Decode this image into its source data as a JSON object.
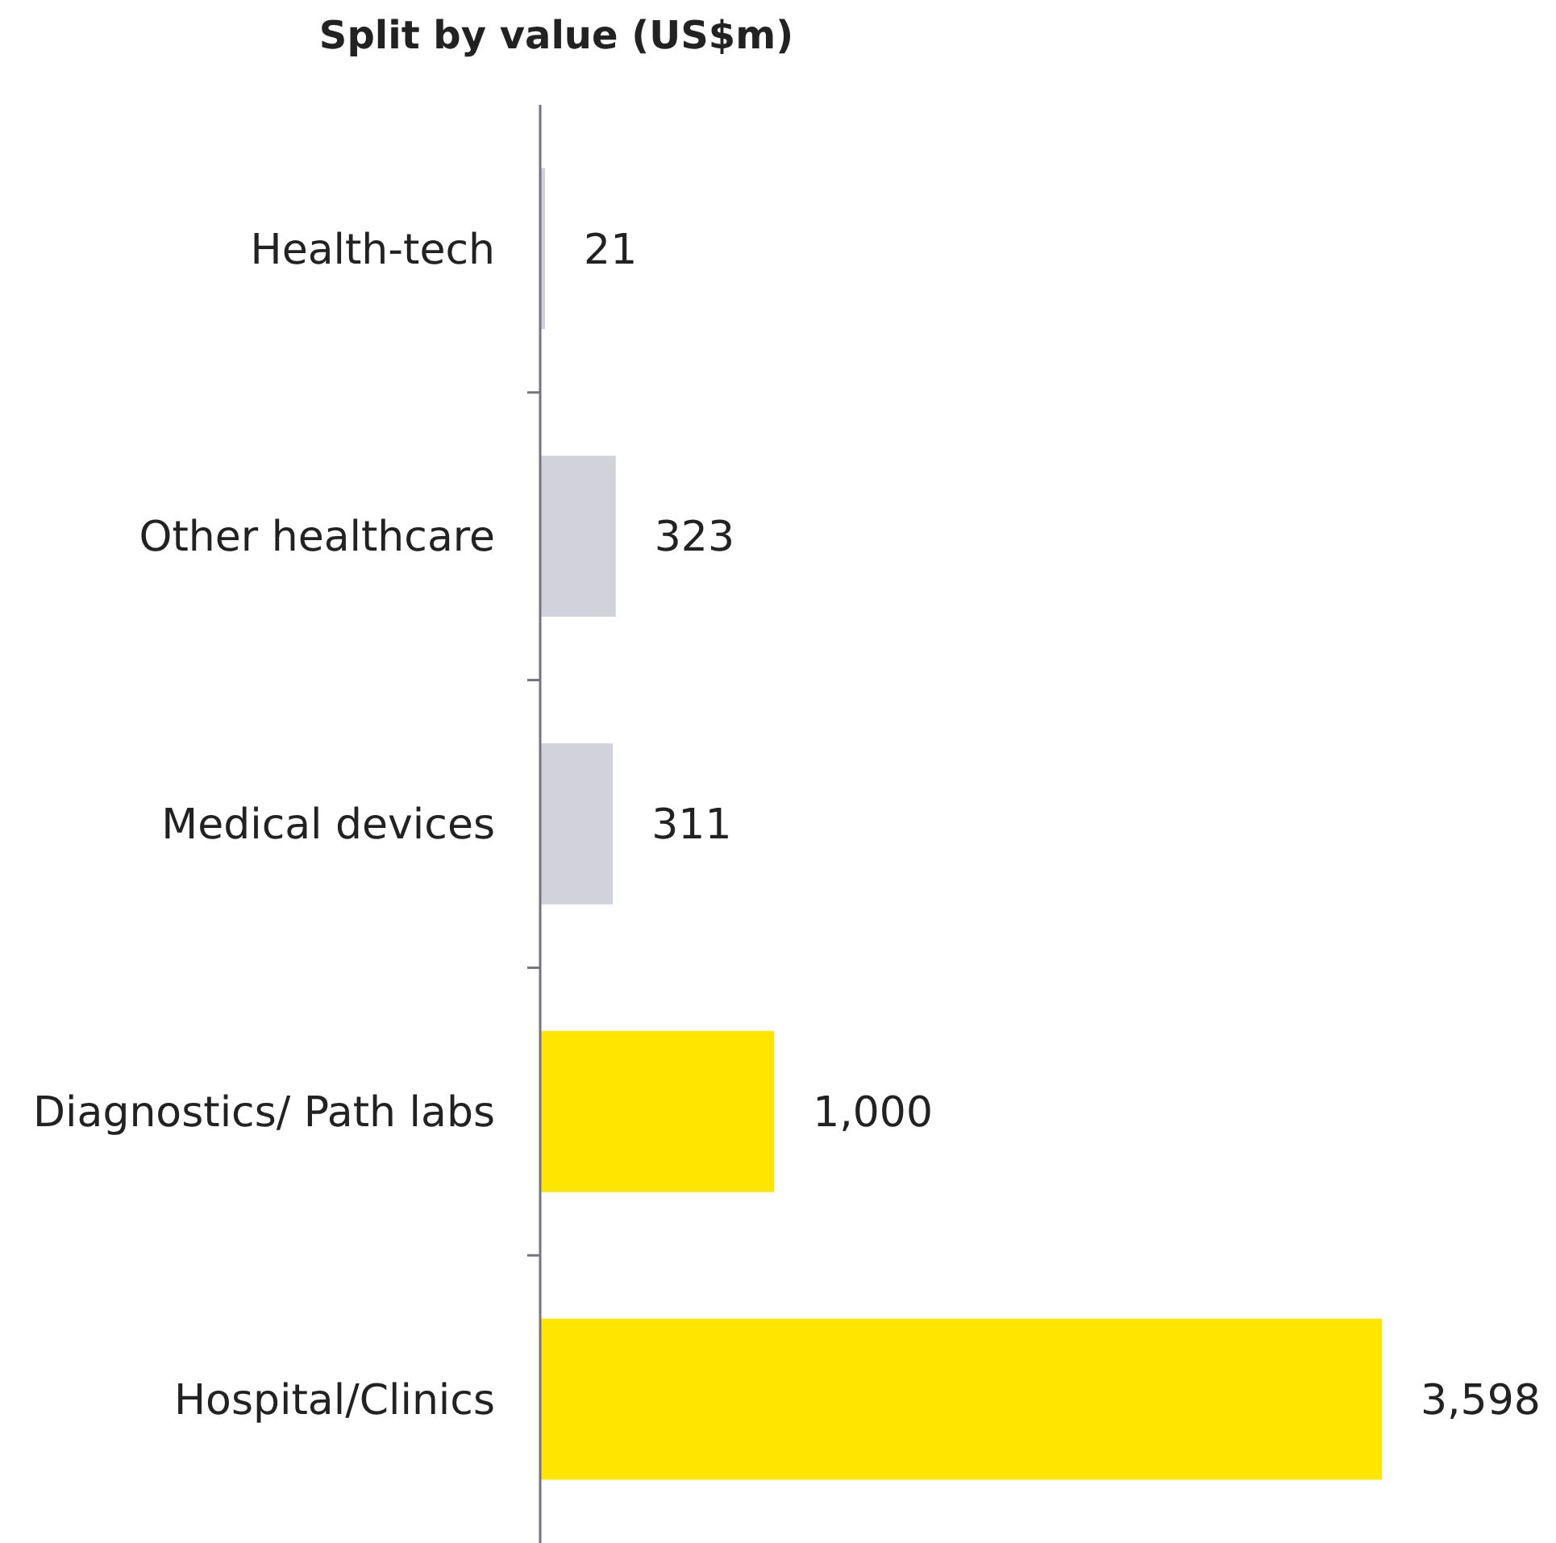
{
  "chart_data": {
    "type": "bar",
    "orientation": "horizontal",
    "title": "Split by value (US$m)",
    "categories": [
      "Health-tech",
      "Other healthcare",
      "Medical devices",
      "Diagnostics/ Path labs",
      "Hospital/Clinics"
    ],
    "values": [
      21,
      323,
      311,
      1000,
      3598
    ],
    "colors": [
      "#cfd0d8",
      "#d2d3da",
      "#d2d3da",
      "#ffe600",
      "#ffe600"
    ],
    "data_labels": true,
    "value_labels": [
      "21",
      "323",
      "311",
      "1,000",
      "3,598"
    ]
  }
}
